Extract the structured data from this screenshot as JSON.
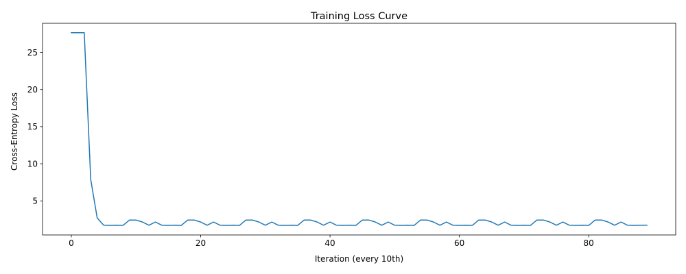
{
  "chart_data": {
    "type": "line",
    "title": "Training Loss Curve",
    "xlabel": "Iteration (every 10th)",
    "ylabel": "Cross-Entropy Loss",
    "xlim": [
      -4.45,
      93.45
    ],
    "ylim": [
      0.41,
      28.92
    ],
    "xticks": [
      0,
      20,
      40,
      60,
      80
    ],
    "yticks": [
      5,
      10,
      15,
      20,
      25
    ],
    "grid": false,
    "series": [
      {
        "color": "#1f77b4",
        "x": [
          0,
          1,
          2,
          3,
          4,
          5,
          6,
          7,
          8,
          9,
          10,
          11,
          12,
          13,
          14,
          15,
          16,
          17,
          18,
          19,
          20,
          21,
          22,
          23,
          24,
          25,
          26,
          27,
          28,
          29,
          30,
          31,
          32,
          33,
          34,
          35,
          36,
          37,
          38,
          39,
          40,
          41,
          42,
          43,
          44,
          45,
          46,
          47,
          48,
          49,
          50,
          51,
          52,
          53,
          54,
          55,
          56,
          57,
          58,
          59,
          60,
          61,
          62,
          63,
          64,
          65,
          66,
          67,
          68,
          69,
          70,
          71,
          72,
          73,
          74,
          75,
          76,
          77,
          78,
          79,
          80,
          81,
          82,
          83,
          84,
          85,
          86,
          87,
          88,
          89
        ],
        "y": [
          27.65,
          27.65,
          27.65,
          7.9,
          2.7,
          1.72,
          1.7,
          1.72,
          1.7,
          2.42,
          2.42,
          2.15,
          1.72,
          2.15,
          1.72,
          1.7,
          1.72,
          1.7,
          2.42,
          2.42,
          2.15,
          1.72,
          2.15,
          1.72,
          1.7,
          1.72,
          1.7,
          2.42,
          2.42,
          2.15,
          1.72,
          2.15,
          1.72,
          1.7,
          1.72,
          1.7,
          2.42,
          2.42,
          2.15,
          1.72,
          2.15,
          1.72,
          1.7,
          1.72,
          1.7,
          2.42,
          2.42,
          2.15,
          1.72,
          2.15,
          1.72,
          1.7,
          1.72,
          1.7,
          2.42,
          2.42,
          2.15,
          1.72,
          2.15,
          1.72,
          1.7,
          1.72,
          1.7,
          2.42,
          2.42,
          2.15,
          1.72,
          2.15,
          1.72,
          1.7,
          1.72,
          1.7,
          2.42,
          2.42,
          2.15,
          1.72,
          2.15,
          1.72,
          1.7,
          1.72,
          1.7,
          2.42,
          2.42,
          2.15,
          1.72,
          2.15,
          1.72,
          1.7,
          1.72,
          1.72
        ]
      }
    ]
  }
}
